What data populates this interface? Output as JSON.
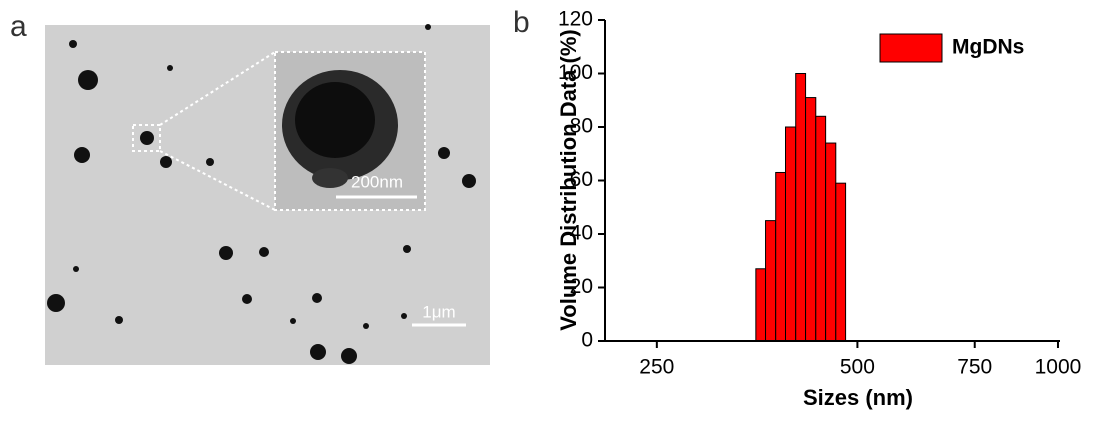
{
  "panel_a": {
    "label": "a",
    "inset_scale": "200nm",
    "scale": "1μm"
  },
  "chart_data": {
    "type": "histogram",
    "panel_label": "b",
    "xlabel": "Sizes (nm)",
    "ylabel": "Volume Distribution Data (%)",
    "bins": [
      352,
      364,
      377,
      390,
      404,
      418,
      433,
      448,
      464,
      480
    ],
    "series": [
      {
        "name": "MgDNs",
        "color": "#ff0000",
        "values": [
          27,
          45,
          63,
          80,
          100,
          91,
          84,
          74,
          59
        ]
      }
    ],
    "xscale": "log",
    "xlim": [
      209,
      1007
    ],
    "xticks": [
      250,
      500,
      750,
      1000
    ],
    "ylim": [
      0,
      120
    ],
    "yticks": [
      0,
      20,
      40,
      60,
      80,
      100,
      120
    ],
    "legend": "upper right"
  }
}
